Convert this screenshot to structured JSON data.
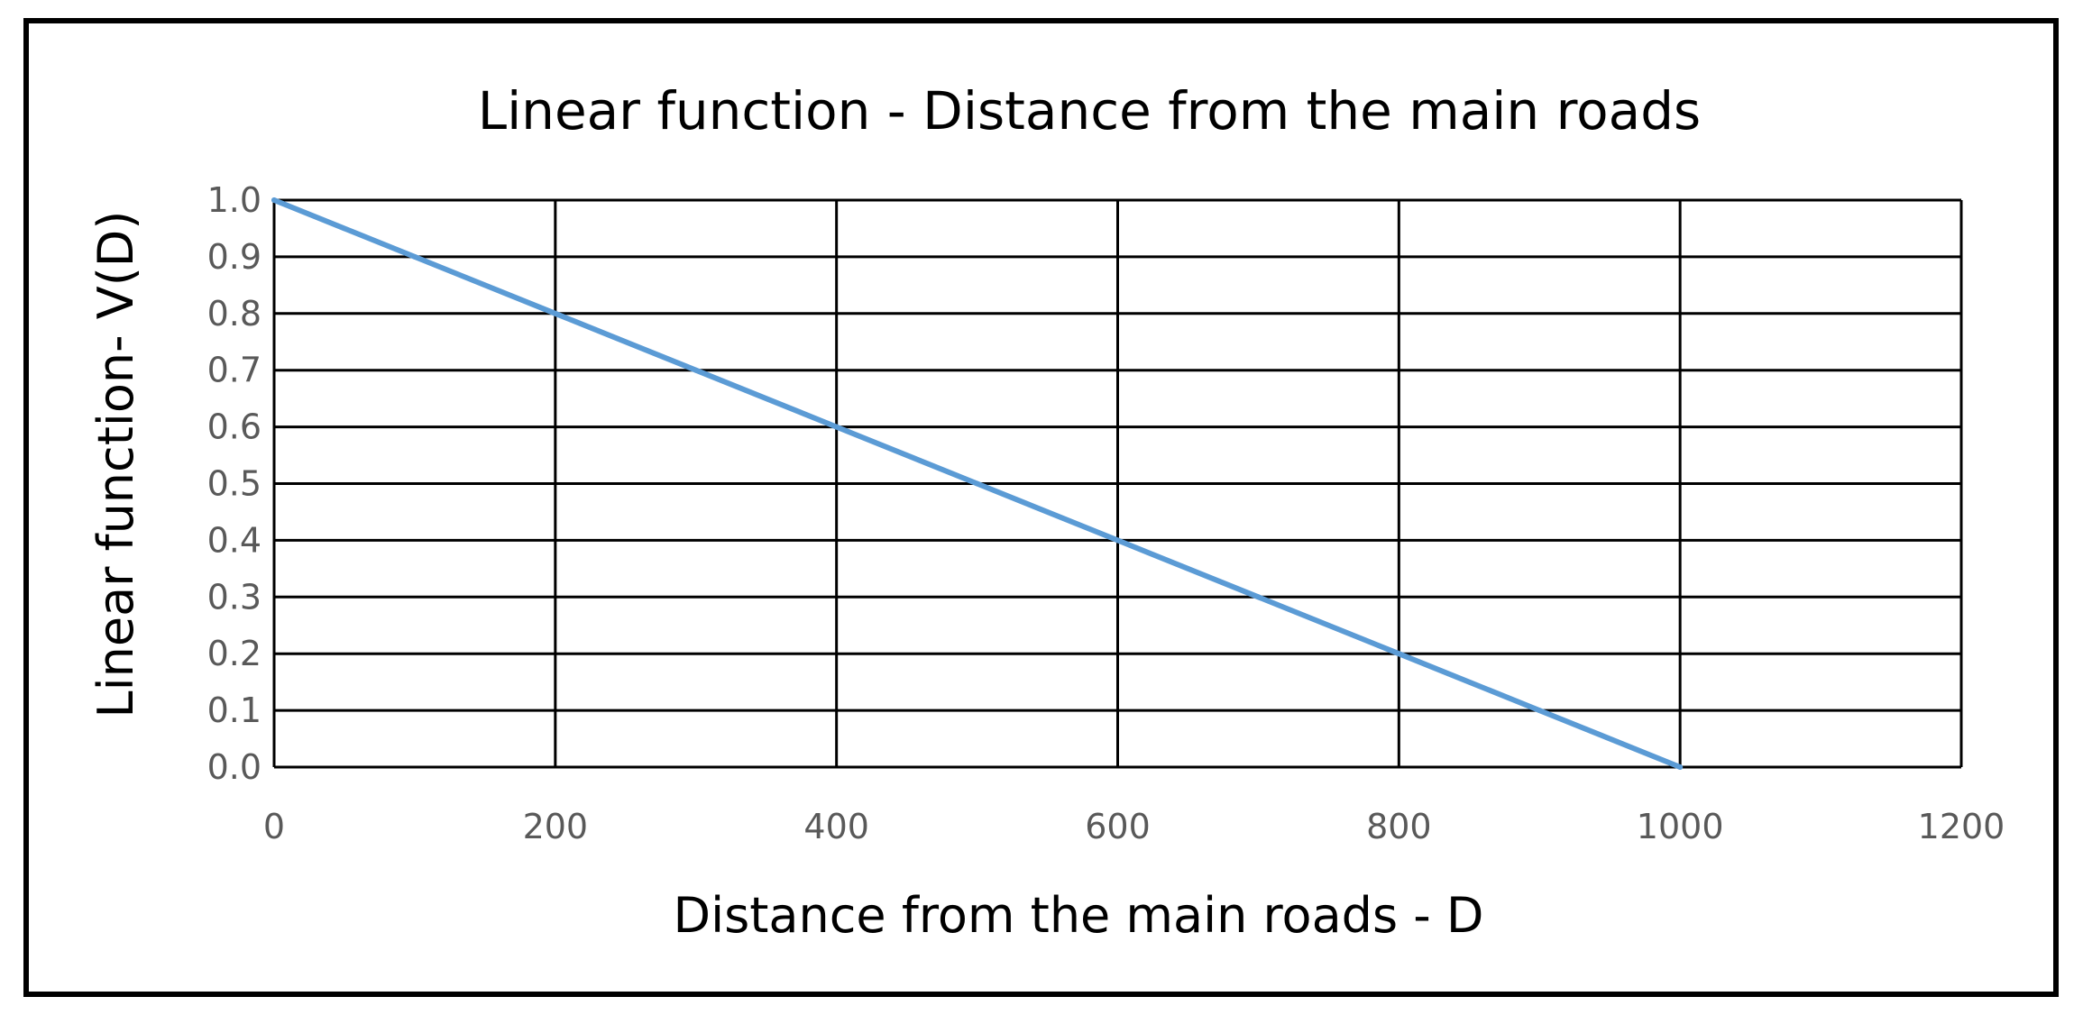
{
  "chart_data": {
    "type": "line",
    "title": "Linear function - Distance from the main roads",
    "xlabel": "Distance from the main roads - D",
    "ylabel": "Linear function- V(D)",
    "xlim": [
      0,
      1200
    ],
    "ylim": [
      0.0,
      1.0
    ],
    "x_ticks": [
      "0",
      "200",
      "400",
      "600",
      "800",
      "1000",
      "1200"
    ],
    "y_ticks": [
      "0.0",
      "0.1",
      "0.2",
      "0.3",
      "0.4",
      "0.5",
      "0.6",
      "0.7",
      "0.8",
      "0.9",
      "1.0"
    ],
    "grid": true,
    "legend": "none",
    "series": [
      {
        "color": "#5b9bd5",
        "x": [
          0,
          100,
          200,
          300,
          400,
          500,
          600,
          700,
          800,
          900,
          1000
        ],
        "y": [
          1.0,
          0.9,
          0.8,
          0.7,
          0.6,
          0.5,
          0.4,
          0.3,
          0.2,
          0.1,
          0.0
        ]
      }
    ]
  },
  "colors": {
    "grid": "#000000",
    "tick_text": "#595959",
    "line": "#5b9bd5"
  }
}
